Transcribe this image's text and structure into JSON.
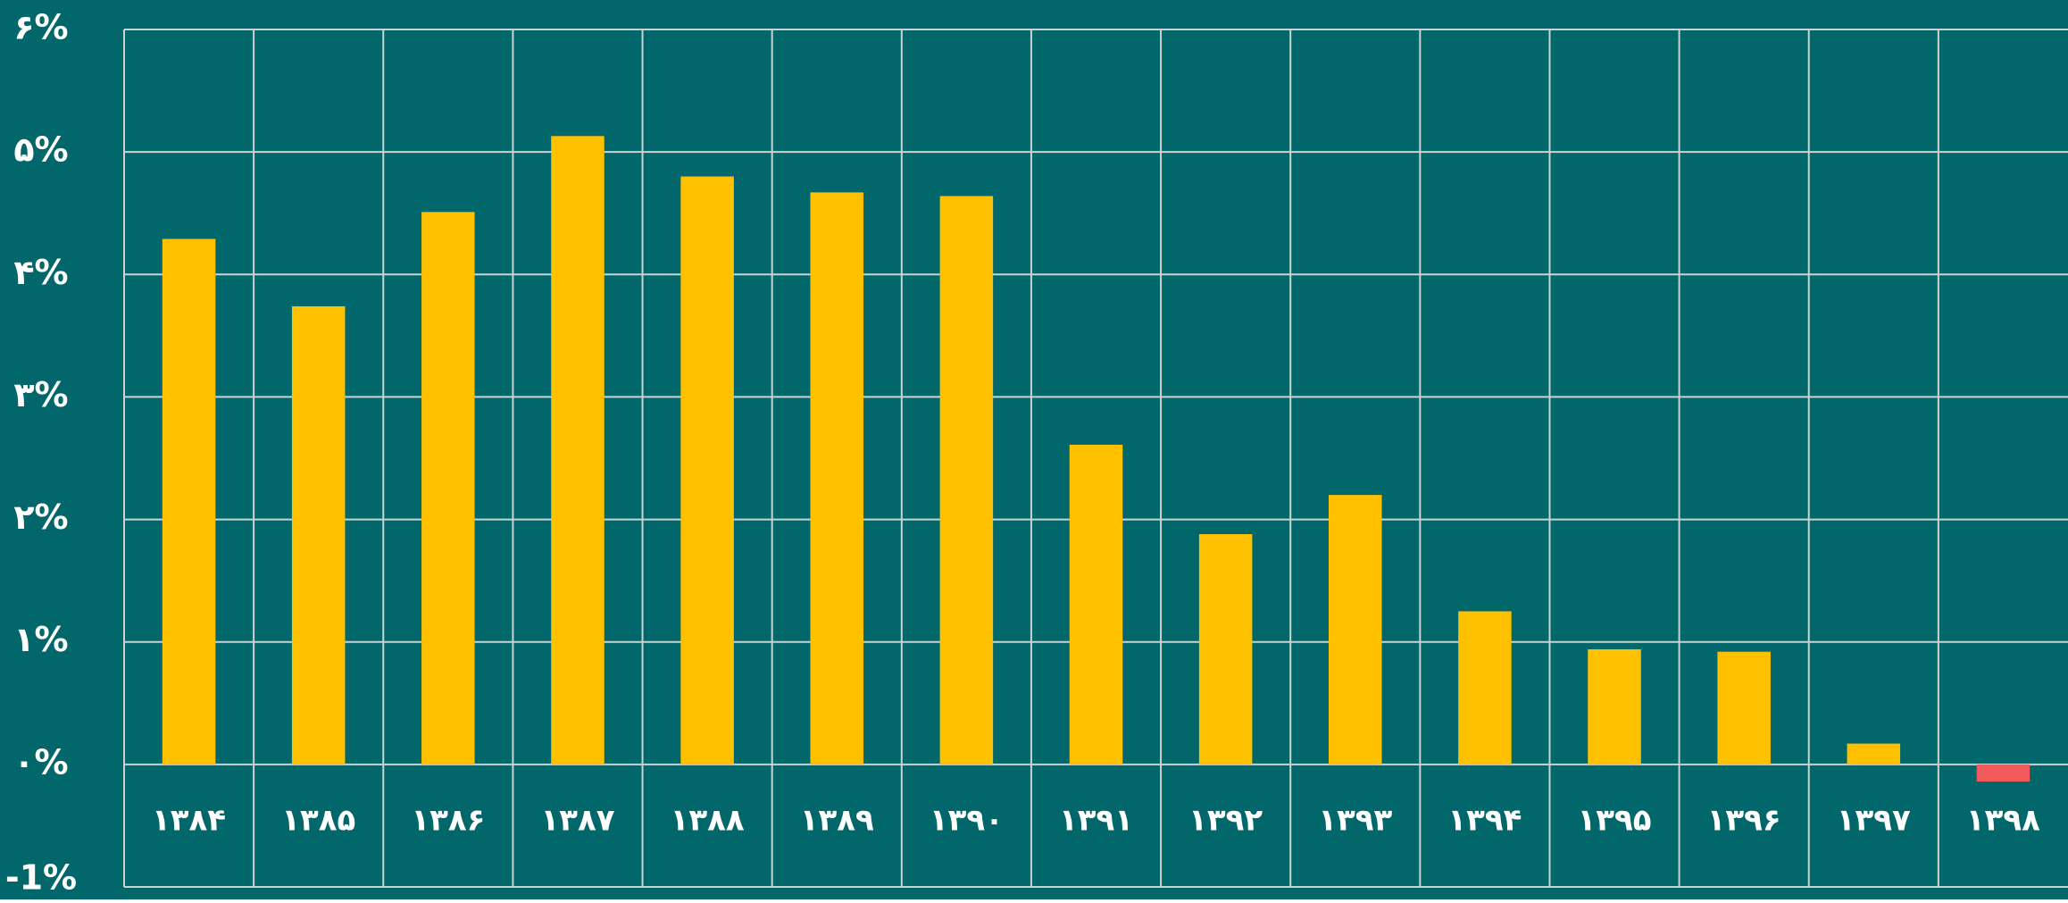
{
  "chart_data": {
    "type": "bar",
    "categories": [
      "۱۳۸۴",
      "۱۳۸۵",
      "۱۳۸۶",
      "۱۳۸۷",
      "۱۳۸۸",
      "۱۳۸۹",
      "۱۳۹۰",
      "۱۳۹۱",
      "۱۳۹۲",
      "۱۳۹۳",
      "۱۳۹۴",
      "۱۳۹۵",
      "۱۳۹۶",
      "۱۳۹۷",
      "۱۳۹۸"
    ],
    "values": [
      4.29,
      3.74,
      4.51,
      5.13,
      4.8,
      4.67,
      4.64,
      2.61,
      1.88,
      2.2,
      1.25,
      0.94,
      0.92,
      0.17,
      -0.14
    ],
    "color": "#ffc000",
    "negative_color": "#f05a5a",
    "background": "#02676a",
    "ylim": [
      -1,
      6
    ],
    "yticks": [
      {
        "value": -1,
        "label": "-1%"
      },
      {
        "value": 0,
        "label": "۰%"
      },
      {
        "value": 1,
        "label": "۱%"
      },
      {
        "value": 2,
        "label": "۲%"
      },
      {
        "value": 3,
        "label": "۳%"
      },
      {
        "value": 4,
        "label": "۴%"
      },
      {
        "value": 5,
        "label": "۵%"
      },
      {
        "value": 6,
        "label": "۶%"
      }
    ],
    "grid": true
  }
}
